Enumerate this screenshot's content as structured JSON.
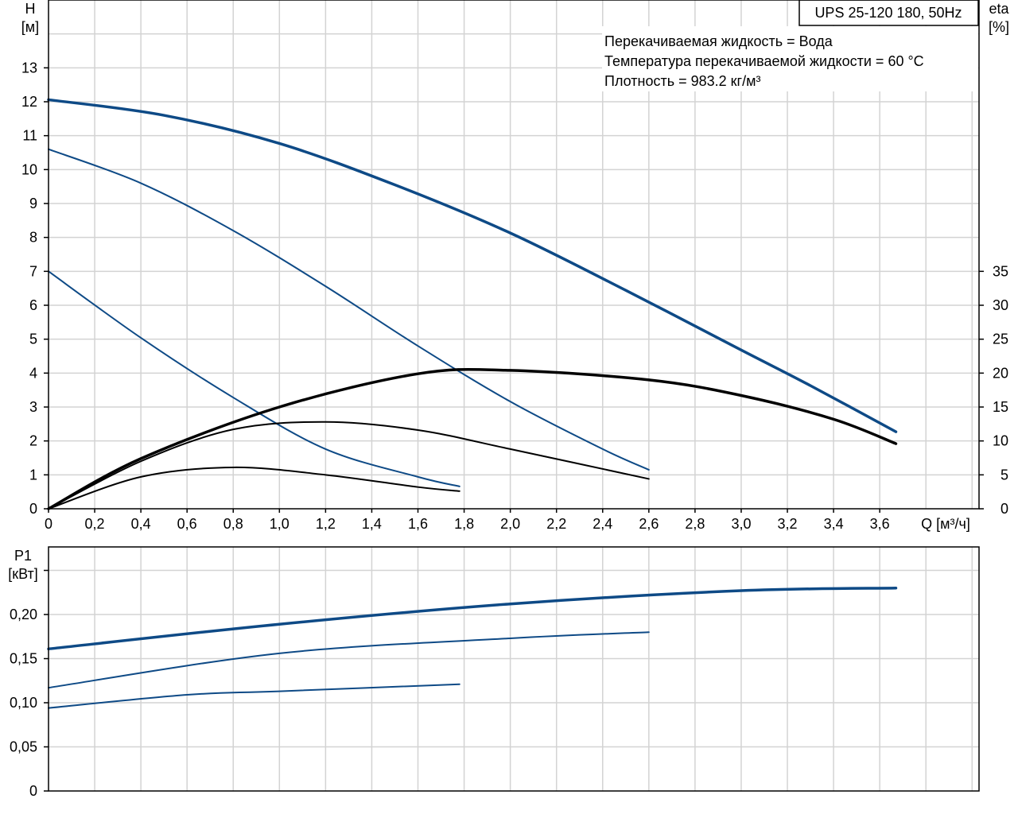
{
  "chart_data": [
    {
      "type": "line",
      "title": "UPS 25-120 180, 50Hz",
      "annotations": [
        "Перекачиваемая жидкость = Вода",
        "Температура перекачиваемой жидкости = 60 °C",
        "Плотность = 983.2 кг/м³"
      ],
      "xlabel": "Q [м³/ч]",
      "ylabel": [
        "H",
        "[м]"
      ],
      "y2label": [
        "eta",
        "[%]"
      ],
      "xlim": [
        0,
        4.03
      ],
      "ylim": [
        0,
        15
      ],
      "y2lim": [
        0,
        75
      ],
      "grid": true,
      "x_ticks": [
        "0",
        "0,2",
        "0,4",
        "0,6",
        "0,8",
        "1,0",
        "1,2",
        "1,4",
        "1,6",
        "1,8",
        "2,0",
        "2,2",
        "2,4",
        "2,6",
        "2,8",
        "3,0",
        "3,2",
        "3,4",
        "3,6"
      ],
      "y_ticks": [
        "0",
        "1",
        "2",
        "3",
        "4",
        "5",
        "6",
        "7",
        "8",
        "9",
        "10",
        "11",
        "12",
        "13"
      ],
      "y2_ticks": [
        "0",
        "5",
        "10",
        "15",
        "20",
        "25",
        "30",
        "35"
      ],
      "colors": {
        "head": "#0e4a86",
        "eta": "#000000"
      },
      "series": [
        {
          "kind": "head",
          "axis": "H",
          "width": 3.5,
          "x": [
            0,
            0.5,
            1.0,
            1.5,
            2.0,
            2.5,
            3.0,
            3.3,
            3.67
          ],
          "y": [
            12.06,
            11.6,
            10.77,
            9.55,
            8.13,
            6.44,
            4.68,
            3.63,
            2.27
          ]
        },
        {
          "kind": "head",
          "axis": "H",
          "width": 2,
          "x": [
            0,
            0.4,
            0.8,
            1.2,
            1.6,
            2.0,
            2.4,
            2.6
          ],
          "y": [
            10.6,
            9.6,
            8.2,
            6.56,
            4.8,
            3.16,
            1.76,
            1.15
          ]
        },
        {
          "kind": "head",
          "axis": "H",
          "width": 2,
          "x": [
            0,
            0.4,
            0.8,
            1.2,
            1.6,
            1.78
          ],
          "y": [
            7.0,
            5.04,
            3.28,
            1.76,
            0.94,
            0.66
          ]
        },
        {
          "kind": "eta",
          "axis": "eta",
          "width": 3.5,
          "x": [
            0,
            0.4,
            1.0,
            1.6,
            2.0,
            2.6,
            3.0,
            3.4,
            3.67
          ],
          "y": [
            0,
            7.4,
            15,
            19.9,
            20.4,
            19,
            16.7,
            13.2,
            9.6
          ]
        },
        {
          "kind": "eta",
          "axis": "eta",
          "width": 2,
          "x": [
            0,
            0.4,
            0.8,
            1.2,
            1.6,
            2.0,
            2.6
          ],
          "y": [
            0,
            7.0,
            11.7,
            12.8,
            11.6,
            8.8,
            4.4
          ]
        },
        {
          "kind": "eta",
          "axis": "eta",
          "width": 2,
          "x": [
            0,
            0.4,
            0.8,
            1.2,
            1.6,
            1.78
          ],
          "y": [
            0,
            4.7,
            6.1,
            5.0,
            3.2,
            2.6
          ]
        }
      ]
    },
    {
      "type": "line",
      "ylabel": [
        "P1",
        "[кВт]"
      ],
      "xlim": [
        0,
        4.03
      ],
      "ylim": [
        0,
        0.2766
      ],
      "grid": true,
      "y_ticks": [
        "0",
        "0,05",
        "0,10",
        "0,15",
        "0,20"
      ],
      "colors": {
        "power": "#0e4a86"
      },
      "series": [
        {
          "kind": "power",
          "width": 3.5,
          "x": [
            0,
            1.0,
            2.0,
            3.0,
            3.67
          ],
          "y": [
            0.161,
            0.189,
            0.212,
            0.227,
            0.23
          ]
        },
        {
          "kind": "power",
          "width": 2,
          "x": [
            0,
            1.0,
            2.0,
            2.6
          ],
          "y": [
            0.117,
            0.156,
            0.173,
            0.18
          ]
        },
        {
          "kind": "power",
          "width": 2,
          "x": [
            0,
            0.6,
            1.0,
            1.78
          ],
          "y": [
            0.094,
            0.109,
            0.113,
            0.121
          ]
        }
      ]
    }
  ]
}
